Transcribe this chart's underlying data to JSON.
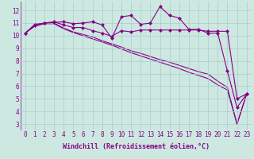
{
  "xlabel": "Windchill (Refroidissement éolien,°C)",
  "bg_color": "#cce8e0",
  "line_color": "#880088",
  "grid_color": "#aacccc",
  "xlim": [
    -0.5,
    23.5
  ],
  "ylim": [
    2.5,
    12.7
  ],
  "yticks": [
    3,
    4,
    5,
    6,
    7,
    8,
    9,
    10,
    11,
    12
  ],
  "xticks": [
    0,
    1,
    2,
    3,
    4,
    5,
    6,
    7,
    8,
    9,
    10,
    11,
    12,
    13,
    14,
    15,
    16,
    17,
    18,
    19,
    20,
    21,
    22,
    23
  ],
  "line1_y": [
    10.2,
    10.9,
    11.0,
    11.05,
    11.1,
    10.95,
    11.0,
    11.1,
    10.85,
    9.8,
    11.5,
    11.6,
    10.9,
    11.0,
    12.3,
    11.6,
    11.4,
    10.5,
    10.5,
    10.2,
    10.2,
    7.2,
    4.3,
    5.4
  ],
  "line2_y": [
    10.2,
    10.8,
    11.0,
    11.1,
    10.85,
    10.65,
    10.65,
    10.4,
    10.2,
    9.95,
    10.4,
    10.3,
    10.45,
    10.45,
    10.45,
    10.45,
    10.45,
    10.45,
    10.45,
    10.35,
    10.35,
    10.35,
    5.0,
    5.4
  ],
  "line3_y": [
    10.2,
    10.8,
    11.0,
    11.0,
    10.6,
    10.3,
    10.1,
    9.9,
    9.6,
    9.35,
    9.1,
    8.8,
    8.6,
    8.35,
    8.1,
    7.9,
    7.65,
    7.4,
    7.15,
    6.95,
    6.4,
    5.9,
    3.0,
    5.4
  ],
  "line4_y": [
    10.2,
    10.75,
    10.95,
    10.95,
    10.55,
    10.25,
    10.0,
    9.75,
    9.5,
    9.25,
    8.95,
    8.65,
    8.4,
    8.15,
    7.9,
    7.65,
    7.4,
    7.1,
    6.85,
    6.6,
    6.1,
    5.7,
    3.0,
    5.4
  ],
  "markersize": 2.5,
  "linewidth": 0.8,
  "xlabel_fontsize": 6,
  "tick_fontsize": 5.5,
  "label_color": "#880088"
}
